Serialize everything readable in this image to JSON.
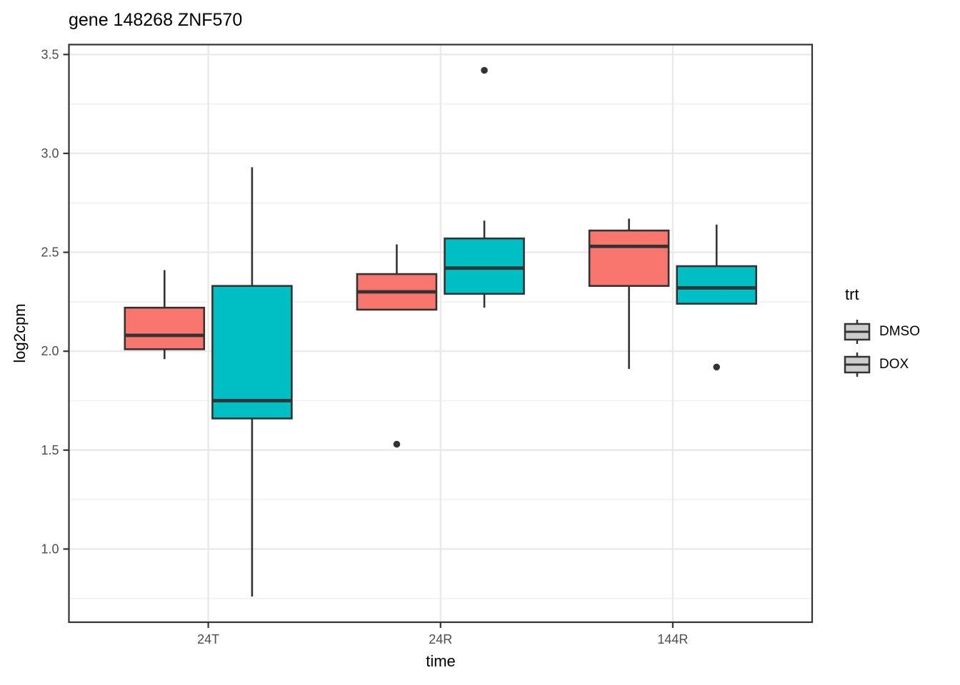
{
  "chart_data": {
    "type": "boxplot",
    "title": "gene 148268 ZNF570",
    "xlabel": "time",
    "ylabel": "log2cpm",
    "categories": [
      "24T",
      "24R",
      "144R"
    ],
    "series": [
      {
        "name": "DMSO",
        "color": "#F8766D",
        "stats": [
          {
            "min": 1.96,
            "q1": 2.01,
            "median": 2.08,
            "q3": 2.22,
            "max": 2.41,
            "outliers": []
          },
          {
            "min": 2.21,
            "q1": 2.21,
            "median": 2.3,
            "q3": 2.39,
            "max": 2.54,
            "outliers": [
              1.53
            ]
          },
          {
            "min": 1.91,
            "q1": 2.33,
            "median": 2.53,
            "q3": 2.61,
            "max": 2.67,
            "outliers": []
          }
        ]
      },
      {
        "name": "DOX",
        "color": "#00BFC4",
        "stats": [
          {
            "min": 0.76,
            "q1": 1.66,
            "median": 1.75,
            "q3": 2.33,
            "max": 2.93,
            "outliers": []
          },
          {
            "min": 2.22,
            "q1": 2.29,
            "median": 2.42,
            "q3": 2.57,
            "max": 2.66,
            "outliers": [
              3.42
            ]
          },
          {
            "min": 2.24,
            "q1": 2.24,
            "median": 2.32,
            "q3": 2.43,
            "max": 2.64,
            "outliers": [
              1.92
            ]
          }
        ]
      }
    ],
    "y_ticks": [
      1.0,
      1.5,
      2.0,
      2.5,
      3.0,
      3.5
    ],
    "y_tick_labels": [
      "1.0",
      "1.5",
      "2.0",
      "2.5",
      "3.0",
      "3.5"
    ],
    "y_minor_ticks": [
      0.75,
      1.25,
      1.75,
      2.25,
      2.75,
      3.25
    ],
    "ylim": [
      0.63,
      3.55
    ],
    "grid": true,
    "legend_position": "right"
  },
  "legend": {
    "title": "trt",
    "items": [
      {
        "label": "DMSO",
        "color": "#F8766D"
      },
      {
        "label": "DOX",
        "color": "#00BFC4"
      }
    ]
  },
  "style_colors": {
    "box_stroke": "#333333",
    "outlier": "#333333",
    "grid_major": "#E9E9E9",
    "grid_minor": "#F0F0F0",
    "panel_border": "#333333",
    "tick_mark": "#333333",
    "tick_label": "#4D4D4D"
  }
}
